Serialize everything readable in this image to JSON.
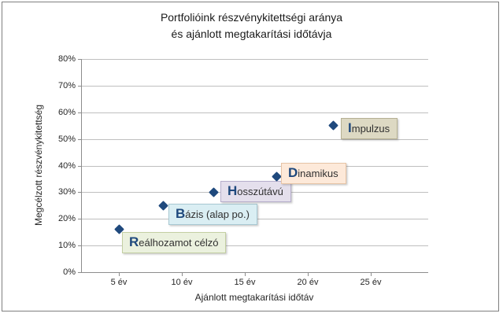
{
  "window": {
    "background": "#ffffff",
    "border_color": "#7f7f7f"
  },
  "chart_data": {
    "type": "scatter",
    "title_lines": [
      "Portfolióink részvénykitettségi aránya",
      "és ajánlott megtakarítási időtávja"
    ],
    "xlabel": "Ajánlott megtakarítási időtáv",
    "ylabel": "Megcélzott részvénykitettség",
    "xlim": [
      2,
      29.5
    ],
    "ylim": [
      0,
      80
    ],
    "grid": "horizontal",
    "legend_position": "none",
    "marker": "diamond",
    "marker_color": "#1f497d",
    "initial_letter_color": "#1f497d",
    "gridline_color": "#bfbfbf",
    "x_ticks": [
      {
        "value": 5,
        "label": "5 év"
      },
      {
        "value": 10,
        "label": "10 év"
      },
      {
        "value": 15,
        "label": "15 év"
      },
      {
        "value": 20,
        "label": "20 év"
      },
      {
        "value": 25,
        "label": "25 év"
      }
    ],
    "y_ticks": [
      {
        "value": 0,
        "label": "0%"
      },
      {
        "value": 10,
        "label": "10%"
      },
      {
        "value": 20,
        "label": "20%"
      },
      {
        "value": 30,
        "label": "30%"
      },
      {
        "value": 40,
        "label": "40%"
      },
      {
        "value": 50,
        "label": "50%"
      },
      {
        "value": 60,
        "label": "60%"
      },
      {
        "value": 70,
        "label": "70%"
      },
      {
        "value": 80,
        "label": "80%"
      }
    ],
    "series": [
      {
        "name": "Reálhozamot célzó",
        "x": 5,
        "y": 16,
        "label_fill": "#ebf1de",
        "label_border": "#c3cfa2",
        "label_dx": 4,
        "label_dy": 3
      },
      {
        "name": "Bázis (alap po.)",
        "x": 8.5,
        "y": 25,
        "label_fill": "#daeef3",
        "label_border": "#a7c8d2",
        "label_dx": 7,
        "label_dy": -2
      },
      {
        "name": "Hosszútávú",
        "x": 12.5,
        "y": 30,
        "label_fill": "#e4dfec",
        "label_border": "#b6aecb",
        "label_dx": 9,
        "label_dy": -14
      },
      {
        "name": "Dinamikus",
        "x": 17.5,
        "y": 36,
        "label_fill": "#fde9d9",
        "label_border": "#e6c3a5",
        "label_dx": 6,
        "label_dy": -17
      },
      {
        "name": "Impulzus",
        "x": 22,
        "y": 55,
        "label_fill": "#ddd9c3",
        "label_border": "#b5b093",
        "label_dx": 10,
        "label_dy": -10
      }
    ]
  }
}
